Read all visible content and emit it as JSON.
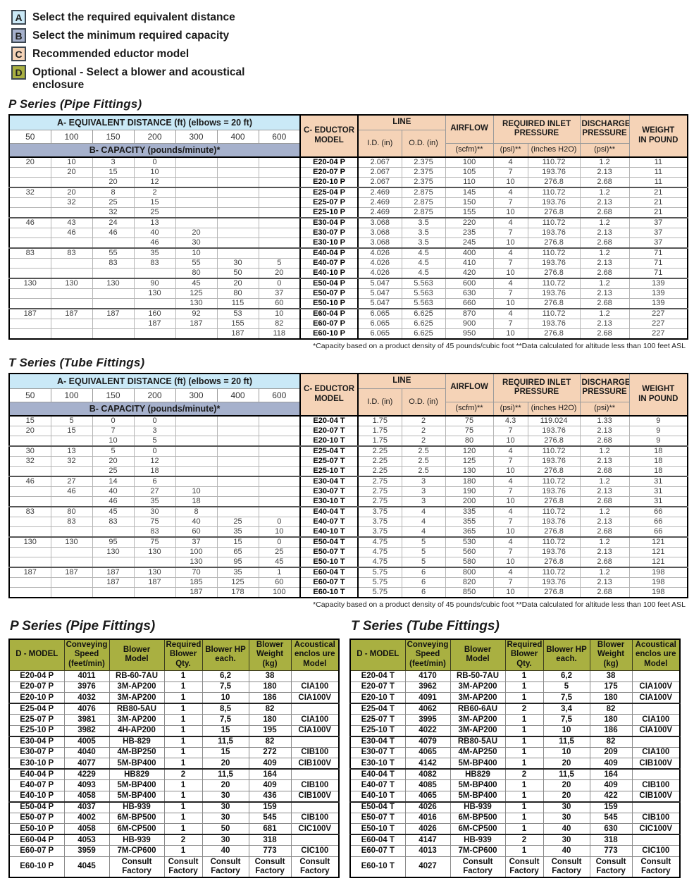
{
  "colors": {
    "light_blue": "#cae9f7",
    "blue_gray": "#a6b1cc",
    "peach": "#f5d3b7",
    "olive": "#a9b041"
  },
  "legend": {
    "items": [
      {
        "key": "A",
        "color_ref": "light_blue",
        "text": "Select the required equivalent distance"
      },
      {
        "key": "B",
        "color_ref": "blue_gray",
        "text": "Select the minimum required capacity"
      },
      {
        "key": "C",
        "color_ref": "peach",
        "text": "Recommended eductor model"
      },
      {
        "key": "D",
        "color_ref": "olive",
        "text": "Optional - Select a blower and acoustical enclosure"
      }
    ]
  },
  "eductor_headers": {
    "distance": "A- EQUIVALENT DISTANCE (ft) (elbows = 20 ft)",
    "distances": [
      "50",
      "100",
      "150",
      "200",
      "300",
      "400",
      "600"
    ],
    "capacity": "B- CAPACITY (pounds/minute)*",
    "model": "C- EDUCTOR\nMODEL",
    "line": "LINE",
    "id": "I.D. (in)",
    "od": "O.D. (in)",
    "airflow": "AIRFLOW",
    "airflow_sub": "(scfm)**",
    "inlet": "REQUIRED INLET\nPRESSURE",
    "inlet_psi": "(psi)**",
    "inlet_h2o": "(inches H2O)",
    "discharge": "DISCHARGE\nPRESSURE",
    "discharge_sub": "(psi)**",
    "weight": "WEIGHT\nIN POUND"
  },
  "footnote": "*Capacity based on a product density of 45 pounds/cubic foot   **Data calculated for altitude less than 100 feet ASL",
  "p_series": {
    "title": "P Series (Pipe Fittings)",
    "rows": [
      [
        "20",
        "10",
        "3",
        "0",
        "",
        "",
        "",
        "E20-04 P",
        "2.067",
        "2.375",
        "100",
        "4",
        "110.72",
        "1.2",
        "11"
      ],
      [
        "",
        "20",
        "15",
        "10",
        "",
        "",
        "",
        "E20-07 P",
        "2.067",
        "2.375",
        "105",
        "7",
        "193.76",
        "2.13",
        "11"
      ],
      [
        "",
        "",
        "20",
        "12",
        "",
        "",
        "",
        "E20-10 P",
        "2.067",
        "2.375",
        "110",
        "10",
        "276.8",
        "2.68",
        "11"
      ],
      [
        "32",
        "20",
        "8",
        "2",
        "",
        "",
        "",
        "E25-04 P",
        "2.469",
        "2.875",
        "145",
        "4",
        "110.72",
        "1.2",
        "21"
      ],
      [
        "",
        "32",
        "25",
        "15",
        "",
        "",
        "",
        "E25-07 P",
        "2.469",
        "2.875",
        "150",
        "7",
        "193.76",
        "2.13",
        "21"
      ],
      [
        "",
        "",
        "32",
        "25",
        "",
        "",
        "",
        "E25-10 P",
        "2.469",
        "2.875",
        "155",
        "10",
        "276.8",
        "2.68",
        "21"
      ],
      [
        "46",
        "43",
        "24",
        "13",
        "",
        "",
        "",
        "E30-04 P",
        "3.068",
        "3.5",
        "220",
        "4",
        "110.72",
        "1.2",
        "37"
      ],
      [
        "",
        "46",
        "46",
        "40",
        "20",
        "",
        "",
        "E30-07 P",
        "3.068",
        "3.5",
        "235",
        "7",
        "193.76",
        "2.13",
        "37"
      ],
      [
        "",
        "",
        "",
        "46",
        "30",
        "",
        "",
        "E30-10 P",
        "3.068",
        "3.5",
        "245",
        "10",
        "276.8",
        "2.68",
        "37"
      ],
      [
        "83",
        "83",
        "55",
        "35",
        "10",
        "",
        "",
        "E40-04 P",
        "4.026",
        "4.5",
        "400",
        "4",
        "110.72",
        "1.2",
        "71"
      ],
      [
        "",
        "",
        "83",
        "83",
        "55",
        "30",
        "5",
        "E40-07 P",
        "4.026",
        "4.5",
        "410",
        "7",
        "193.76",
        "2.13",
        "71"
      ],
      [
        "",
        "",
        "",
        "",
        "80",
        "50",
        "20",
        "E40-10 P",
        "4.026",
        "4.5",
        "420",
        "10",
        "276.8",
        "2.68",
        "71"
      ],
      [
        "130",
        "130",
        "130",
        "90",
        "45",
        "20",
        "0",
        "E50-04 P",
        "5.047",
        "5.563",
        "600",
        "4",
        "110.72",
        "1.2",
        "139"
      ],
      [
        "",
        "",
        "",
        "130",
        "125",
        "80",
        "37",
        "E50-07 P",
        "5.047",
        "5.563",
        "630",
        "7",
        "193.76",
        "2.13",
        "139"
      ],
      [
        "",
        "",
        "",
        "",
        "130",
        "115",
        "60",
        "E50-10 P",
        "5.047",
        "5.563",
        "660",
        "10",
        "276.8",
        "2.68",
        "139"
      ],
      [
        "187",
        "187",
        "187",
        "160",
        "92",
        "53",
        "10",
        "E60-04 P",
        "6.065",
        "6.625",
        "870",
        "4",
        "110.72",
        "1.2",
        "227"
      ],
      [
        "",
        "",
        "",
        "187",
        "187",
        "155",
        "82",
        "E60-07 P",
        "6.065",
        "6.625",
        "900",
        "7",
        "193.76",
        "2.13",
        "227"
      ],
      [
        "",
        "",
        "",
        "",
        "",
        "187",
        "118",
        "E60-10 P",
        "6.065",
        "6.625",
        "950",
        "10",
        "276.8",
        "2.68",
        "227"
      ]
    ]
  },
  "t_series": {
    "title": "T Series (Tube Fittings)",
    "rows": [
      [
        "15",
        "5",
        "0",
        "0",
        "",
        "",
        "",
        "E20-04 T",
        "1.75",
        "2",
        "75",
        "4.3",
        "119.024",
        "1.33",
        "9"
      ],
      [
        "20",
        "15",
        "7",
        "3",
        "",
        "",
        "",
        "E20-07 T",
        "1.75",
        "2",
        "75",
        "7",
        "193.76",
        "2.13",
        "9"
      ],
      [
        "",
        "",
        "10",
        "5",
        "",
        "",
        "",
        "E20-10 T",
        "1.75",
        "2",
        "80",
        "10",
        "276.8",
        "2.68",
        "9"
      ],
      [
        "30",
        "13",
        "5",
        "0",
        "",
        "",
        "",
        "E25-04 T",
        "2.25",
        "2.5",
        "120",
        "4",
        "110.72",
        "1.2",
        "18"
      ],
      [
        "32",
        "32",
        "20",
        "12",
        "",
        "",
        "",
        "E25-07 T",
        "2.25",
        "2.5",
        "125",
        "7",
        "193.76",
        "2.13",
        "18"
      ],
      [
        "",
        "",
        "25",
        "18",
        "",
        "",
        "",
        "E25-10 T",
        "2.25",
        "2.5",
        "130",
        "10",
        "276.8",
        "2.68",
        "18"
      ],
      [
        "46",
        "27",
        "14",
        "6",
        "",
        "",
        "",
        "E30-04 T",
        "2.75",
        "3",
        "180",
        "4",
        "110.72",
        "1.2",
        "31"
      ],
      [
        "",
        "46",
        "40",
        "27",
        "10",
        "",
        "",
        "E30-07 T",
        "2.75",
        "3",
        "190",
        "7",
        "193.76",
        "2.13",
        "31"
      ],
      [
        "",
        "",
        "46",
        "35",
        "18",
        "",
        "",
        "E30-10 T",
        "2.75",
        "3",
        "200",
        "10",
        "276.8",
        "2.68",
        "31"
      ],
      [
        "83",
        "80",
        "45",
        "30",
        "8",
        "",
        "",
        "E40-04 T",
        "3.75",
        "4",
        "335",
        "4",
        "110.72",
        "1.2",
        "66"
      ],
      [
        "",
        "83",
        "83",
        "75",
        "40",
        "25",
        "0",
        "E40-07 T",
        "3.75",
        "4",
        "355",
        "7",
        "193.76",
        "2.13",
        "66"
      ],
      [
        "",
        "",
        "",
        "83",
        "60",
        "35",
        "10",
        "E40-10 T",
        "3.75",
        "4",
        "365",
        "10",
        "276.8",
        "2.68",
        "66"
      ],
      [
        "130",
        "130",
        "95",
        "75",
        "37",
        "15",
        "0",
        "E50-04 T",
        "4.75",
        "5",
        "530",
        "4",
        "110.72",
        "1.2",
        "121"
      ],
      [
        "",
        "",
        "130",
        "130",
        "100",
        "65",
        "25",
        "E50-07 T",
        "4.75",
        "5",
        "560",
        "7",
        "193.76",
        "2.13",
        "121"
      ],
      [
        "",
        "",
        "",
        "",
        "130",
        "95",
        "45",
        "E50-10 T",
        "4.75",
        "5",
        "580",
        "10",
        "276.8",
        "2.68",
        "121"
      ],
      [
        "187",
        "187",
        "187",
        "130",
        "70",
        "35",
        "1",
        "E60-04 T",
        "5.75",
        "6",
        "800",
        "4",
        "110.72",
        "1.2",
        "198"
      ],
      [
        "",
        "",
        "187",
        "187",
        "185",
        "125",
        "60",
        "E60-07 T",
        "5.75",
        "6",
        "820",
        "7",
        "193.76",
        "2.13",
        "198"
      ],
      [
        "",
        "",
        "",
        "",
        "187",
        "178",
        "100",
        "E60-10 T",
        "5.75",
        "6",
        "850",
        "10",
        "276.8",
        "2.68",
        "198"
      ]
    ]
  },
  "blower_headers": [
    "D - MODEL",
    "Conveying\nSpeed\n(feet/min)",
    "Blower\nModel",
    "Required\nBlower\nQty.",
    "Blower HP\neach.",
    "Blower\nWeight\n(kg)",
    "Acoustical\nenclos ure\nModel"
  ],
  "p_blower": {
    "title": "P Series (Pipe Fittings)",
    "rows": [
      [
        "E20-04 P",
        "4011",
        "RB-60-7AU",
        "1",
        "6,2",
        "38",
        ""
      ],
      [
        "E20-07 P",
        "3976",
        "3M-AP200",
        "1",
        "7,5",
        "180",
        "CIA100"
      ],
      [
        "E20-10 P",
        "4032",
        "3M-AP200",
        "1",
        "10",
        "186",
        "CIA100V"
      ],
      [
        "E25-04 P",
        "4076",
        "RB80-5AU",
        "1",
        "8,5",
        "82",
        ""
      ],
      [
        "E25-07 P",
        "3981",
        "3M-AP200",
        "1",
        "7,5",
        "180",
        "CIA100"
      ],
      [
        "E25-10 P",
        "3982",
        "4H-AP200",
        "1",
        "15",
        "195",
        "CIA100V"
      ],
      [
        "E30-04 P",
        "4005",
        "HB-829",
        "1",
        "11,5",
        "82",
        ""
      ],
      [
        "E30-07 P",
        "4040",
        "4M-BP250",
        "1",
        "15",
        "272",
        "CIB100"
      ],
      [
        "E30-10 P",
        "4077",
        "5M-BP400",
        "1",
        "20",
        "409",
        "CIB100V"
      ],
      [
        "E40-04 P",
        "4229",
        "HB829",
        "2",
        "11,5",
        "164",
        ""
      ],
      [
        "E40-07 P",
        "4093",
        "5M-BP400",
        "1",
        "20",
        "409",
        "CIB100"
      ],
      [
        "E40-10 P",
        "4058",
        "5M-BP400",
        "1",
        "30",
        "436",
        "CIB100V"
      ],
      [
        "E50-04 P",
        "4037",
        "HB-939",
        "1",
        "30",
        "159",
        ""
      ],
      [
        "E50-07 P",
        "4002",
        "6M-BP500",
        "1",
        "30",
        "545",
        "CIB100"
      ],
      [
        "E50-10 P",
        "4058",
        "6M-CP500",
        "1",
        "50",
        "681",
        "CIC100V"
      ],
      [
        "E60-04 P",
        "4053",
        "HB-939",
        "2",
        "30",
        "318",
        ""
      ],
      [
        "E60-07 P",
        "3959",
        "7M-CP600",
        "1",
        "40",
        "773",
        "CIC100"
      ],
      [
        "E60-10 P",
        "4045",
        "Consult Factory",
        "Consult Factory",
        "Consult Factory",
        "Consult Factory",
        "Consult Factory"
      ]
    ]
  },
  "t_blower": {
    "title": "T Series (Tube Fittings)",
    "rows": [
      [
        "E20-04 T",
        "4170",
        "RB-50-7AU",
        "1",
        "6,2",
        "38",
        ""
      ],
      [
        "E20-07 T",
        "3962",
        "3M-AP200",
        "1",
        "5",
        "175",
        "CIA100V"
      ],
      [
        "E20-10 T",
        "4091",
        "3M-AP200",
        "1",
        "7,5",
        "180",
        "CIA100V"
      ],
      [
        "E25-04 T",
        "4062",
        "RB60-6AU",
        "2",
        "3,4",
        "82",
        ""
      ],
      [
        "E25-07 T",
        "3995",
        "3M-AP200",
        "1",
        "7,5",
        "180",
        "CIA100"
      ],
      [
        "E25-10 T",
        "4022",
        "3M-AP200",
        "1",
        "10",
        "186",
        "CIA100V"
      ],
      [
        "E30-04 T",
        "4079",
        "RB80-5AU",
        "1",
        "11,5",
        "82",
        ""
      ],
      [
        "E30-07 T",
        "4065",
        "4M-AP250",
        "1",
        "10",
        "209",
        "CIA100"
      ],
      [
        "E30-10 T",
        "4142",
        "5M-BP400",
        "1",
        "20",
        "409",
        "CIB100V"
      ],
      [
        "E40-04 T",
        "4082",
        "HB829",
        "2",
        "11,5",
        "164",
        ""
      ],
      [
        "E40-07 T",
        "4085",
        "5M-BP400",
        "1",
        "20",
        "409",
        "CIB100"
      ],
      [
        "E40-10 T",
        "4065",
        "5M-BP400",
        "1",
        "20",
        "422",
        "CIB100V"
      ],
      [
        "E50-04 T",
        "4026",
        "HB-939",
        "1",
        "30",
        "159",
        ""
      ],
      [
        "E50-07 T",
        "4016",
        "6M-BP500",
        "1",
        "30",
        "545",
        "CIB100"
      ],
      [
        "E50-10 T",
        "4026",
        "6M-CP500",
        "1",
        "40",
        "630",
        "CIC100V"
      ],
      [
        "E60-04 T",
        "4147",
        "HB-939",
        "2",
        "30",
        "318",
        ""
      ],
      [
        "E60-07 T",
        "4013",
        "7M-CP600",
        "1",
        "40",
        "773",
        "CIC100"
      ],
      [
        "E60-10 T",
        "4027",
        "Consult Factory",
        "Consult Factory",
        "Consult Factory",
        "Consult Factory",
        "Consult Factory"
      ]
    ]
  }
}
